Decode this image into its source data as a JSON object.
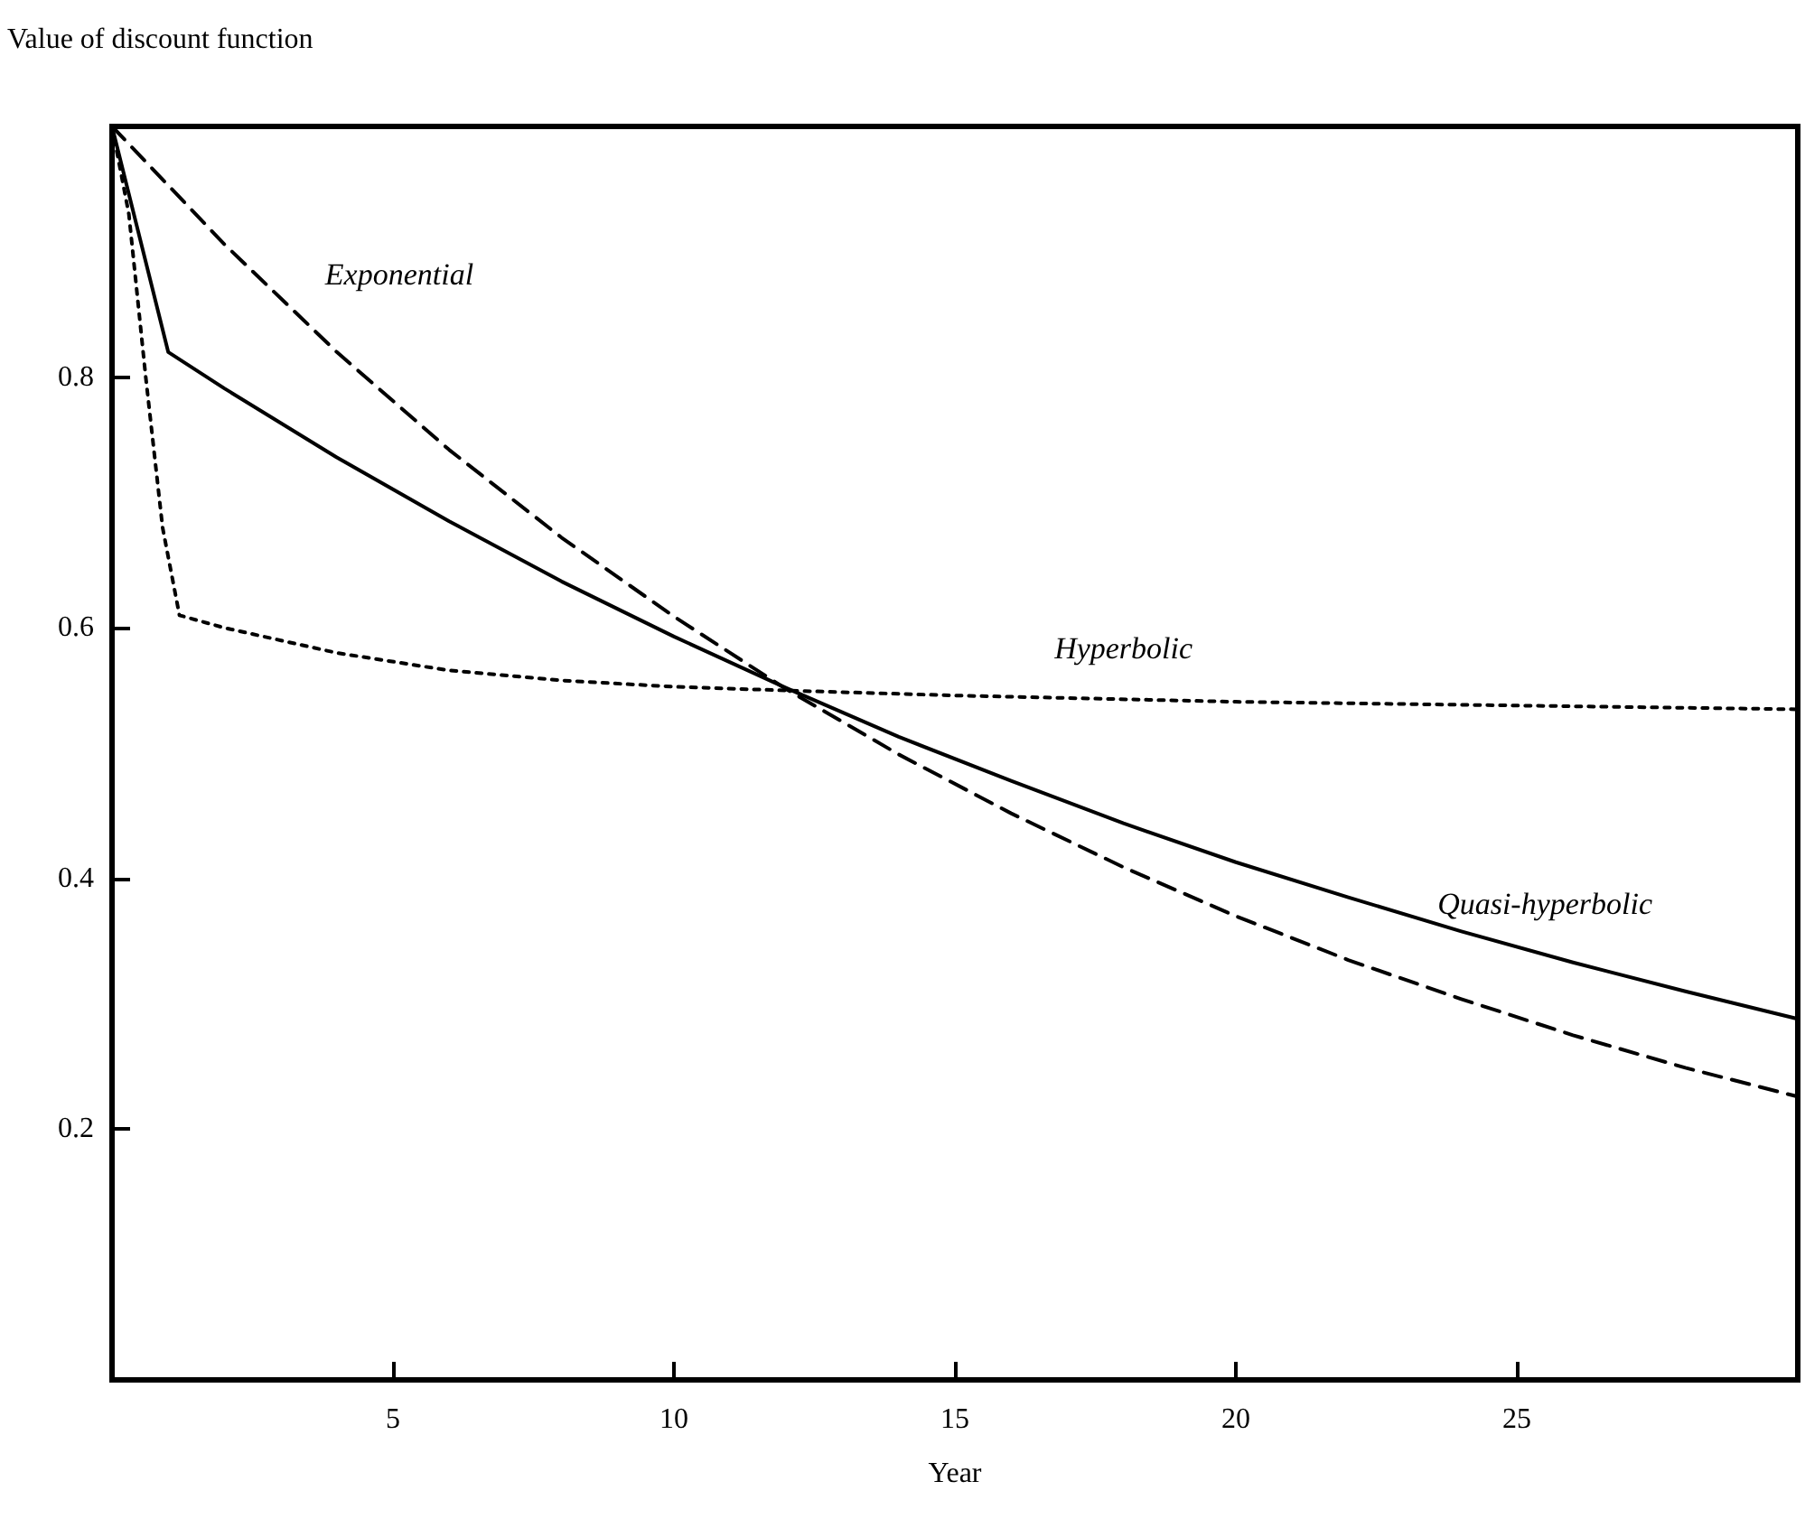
{
  "chart_data": {
    "type": "line",
    "ylabel": "Value of discount function",
    "xlabel": "Year",
    "xlim": [
      0,
      30
    ],
    "ylim": [
      0,
      1
    ],
    "xticks": [
      5,
      10,
      15,
      20,
      25
    ],
    "yticks": [
      0.2,
      0.4,
      0.6,
      0.8
    ],
    "grid": false,
    "marker": "none",
    "series": [
      {
        "name": "Exponential",
        "color": "#000000",
        "line_style": "dashed",
        "x": [
          0,
          2,
          4,
          6,
          8,
          10,
          12,
          14,
          16,
          18,
          20,
          22,
          24,
          26,
          28,
          30
        ],
        "values": [
          1,
          0.906,
          0.82,
          0.742,
          0.672,
          0.609,
          0.551,
          0.499,
          0.452,
          0.409,
          0.37,
          0.335,
          0.304,
          0.275,
          0.249,
          0.226
        ]
      },
      {
        "name": "Quasi-hyperbolic",
        "color": "#000000",
        "line_style": "solid",
        "x": [
          0,
          1,
          2,
          4,
          6,
          8,
          10,
          12,
          14,
          16,
          18,
          20,
          22,
          24,
          26,
          28,
          30
        ],
        "values": [
          1,
          0.82,
          0.791,
          0.736,
          0.685,
          0.637,
          0.593,
          0.552,
          0.513,
          0.478,
          0.444,
          0.413,
          0.385,
          0.358,
          0.333,
          0.31,
          0.288
        ]
      },
      {
        "name": "Hyperbolic",
        "color": "#000000",
        "line_style": "dotted",
        "x": [
          0,
          0.3,
          0.6,
          0.9,
          1.2,
          2,
          4,
          6,
          8,
          10,
          12,
          15,
          20,
          25,
          30
        ],
        "values": [
          1,
          0.93,
          0.8,
          0.68,
          0.61,
          0.6,
          0.58,
          0.566,
          0.558,
          0.553,
          0.55,
          0.546,
          0.541,
          0.538,
          0.535
        ]
      }
    ]
  }
}
